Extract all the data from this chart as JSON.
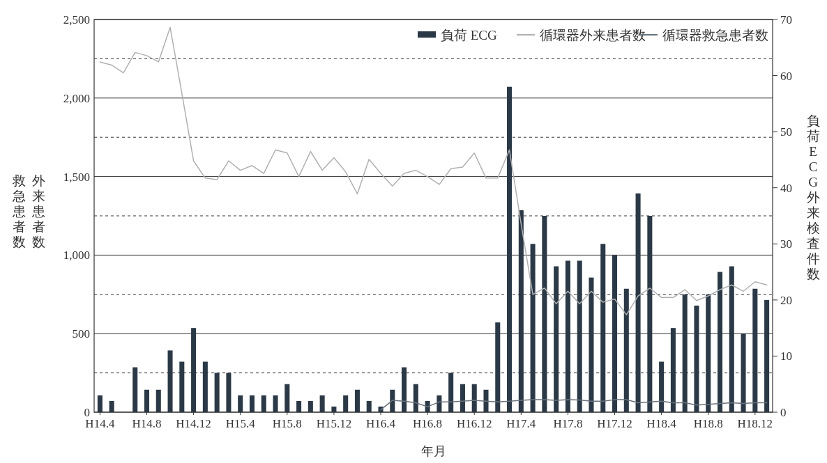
{
  "chart_data": {
    "type": "bar",
    "xlabel": "年月",
    "ylabel": "外来患者数",
    "annotations": [
      "救急患者数"
    ],
    "y2label": "負荷ECG外来検査件数",
    "categories": [
      "H14.4",
      null,
      null,
      null,
      "H14.8",
      null,
      null,
      null,
      "H14.12",
      null,
      null,
      null,
      "H15.4",
      null,
      null,
      null,
      "H15.8",
      null,
      null,
      null,
      "H15.12",
      null,
      null,
      null,
      "H16.4",
      null,
      null,
      null,
      "H16.8",
      null,
      null,
      null,
      "H16.12",
      null,
      null,
      null,
      "H17.4",
      null,
      null,
      null,
      "H17.8",
      null,
      null,
      null,
      "H17.12",
      null,
      null,
      null,
      "H18.4",
      null,
      null,
      null,
      "H18.8",
      null,
      null,
      null,
      "H18.12",
      null
    ],
    "series": [
      {
        "name": "負荷 ECG",
        "axis": "y2",
        "color": "#2b3947",
        "values": [
          3,
          2,
          0,
          8,
          4,
          4,
          11,
          9,
          15,
          9,
          7,
          7,
          3,
          3,
          3,
          3,
          5,
          2,
          2,
          3,
          1,
          3,
          4,
          2,
          1,
          4,
          8,
          5,
          2,
          3,
          7,
          5,
          5,
          4,
          16,
          58,
          36,
          30,
          35,
          26,
          27,
          27,
          24,
          30,
          28,
          22,
          39,
          35,
          9,
          15,
          21,
          19,
          21,
          25,
          26,
          14,
          22,
          20
        ]
      },
      {
        "name": "循環器外来患者数",
        "type": "line",
        "axis": "y",
        "color": "#b0b0b0",
        "values": [
          2230,
          2210,
          2160,
          2290,
          2270,
          2230,
          2450,
          2030,
          1600,
          1490,
          1480,
          1600,
          1540,
          1570,
          1520,
          1670,
          1650,
          1500,
          1660,
          1540,
          1620,
          1530,
          1390,
          1610,
          1520,
          1440,
          1520,
          1540,
          1500,
          1450,
          1550,
          1560,
          1650,
          1490,
          1490,
          1670,
          1200,
          750,
          790,
          690,
          770,
          690,
          770,
          700,
          720,
          620,
          740,
          790,
          730,
          730,
          780,
          710,
          740,
          780,
          810,
          770,
          830,
          810
        ]
      },
      {
        "name": "循環器救急患者数",
        "type": "line",
        "axis": "y",
        "color": "#68727d",
        "values": [
          null,
          null,
          null,
          null,
          null,
          null,
          null,
          null,
          null,
          null,
          null,
          null,
          null,
          null,
          null,
          null,
          null,
          null,
          null,
          null,
          null,
          null,
          null,
          null,
          15,
          75,
          70,
          60,
          35,
          65,
          65,
          70,
          75,
          70,
          65,
          70,
          75,
          80,
          80,
          75,
          80,
          78,
          70,
          70,
          80,
          80,
          60,
          65,
          70,
          60,
          60,
          45,
          50,
          55,
          60,
          55,
          60,
          60
        ]
      }
    ],
    "ylim": [
      0,
      2500
    ],
    "yticks": [
      0,
      {
        "value": 250,
        "label": null
      },
      {
        "value": 500,
        "label": "500"
      },
      {
        "value": 750,
        "label": null
      },
      {
        "value": 1000,
        "label": "1,000"
      },
      {
        "value": 1250,
        "label": null
      },
      {
        "value": 1500,
        "label": "1,500"
      },
      {
        "value": 1750,
        "label": null
      },
      {
        "value": 2000,
        "label": "2,000"
      },
      {
        "value": 2250,
        "label": null
      },
      {
        "value": 2500,
        "label": "2,500"
      }
    ],
    "y2lim": [
      0,
      70
    ],
    "y2ticks": [
      0,
      10,
      20,
      30,
      40,
      50,
      60,
      70
    ],
    "grid": "y",
    "legend": "top right",
    "marker": "none"
  }
}
